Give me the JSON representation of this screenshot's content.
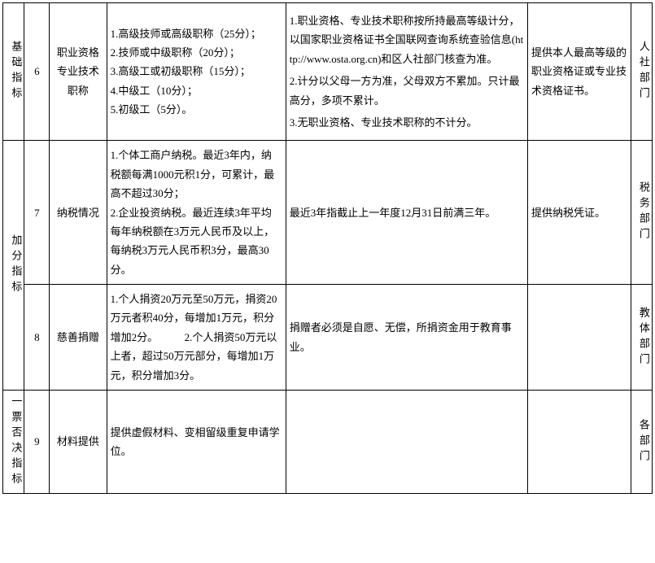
{
  "rows": {
    "r6": {
      "category": "基础指标",
      "num": "6",
      "name": "职业资格专业技术职称",
      "score": "1.高级技师或高级职称（25分）；\n2.技师或中级职称（20分）；\n3.高级工或初级职称（15分）；\n4.中级工（10分）；\n5.初级工（5分）。",
      "note1": "1.职业资格、专业技术职称按所持最高等级计分，以国家职业资格证书全国联网查询系统查验信息(http://www.osta.org.cn)和区人社部门核查为准。",
      "note2": "2.计分以父母一方为准，父母双方不累加。只计最高分，多项不累计。",
      "note3": "3.无职业资格、专业技术职称的不计分。",
      "doc": "提供本人最高等级的职业资格证或专业技术资格证书。",
      "dept": "人社部门"
    },
    "r7": {
      "category": "加分指标",
      "num": "7",
      "name": "纳税情况",
      "score": "1.个体工商户纳税。最近3年内，纳税额每满1000元积1分，可累计，最高不超过30分；\n2.企业投资纳税。最近连续3年平均每年纳税额在3万元人民币及以上，每纳税3万元人民币积3分，最高30分。",
      "note": "最近3年指截止上一年度12月31日前满三年。",
      "doc": "提供纳税凭证。",
      "dept": "税务部门"
    },
    "r8": {
      "num": "8",
      "name": "慈善捐赠",
      "score": "1.个人捐资20万元至50万元，捐资20万元者积40分，每增加1万元，积分增加2分。　　　2.个人捐资50万元以上者，超过50万元部分，每增加1万元，积分增加3分。",
      "note": "捐赠者必须是自愿、无偿，所捐资金用于教育事业。",
      "doc": "",
      "dept": "教体部门"
    },
    "r9": {
      "category": "一票否决指标",
      "num": "9",
      "name": "材料提供",
      "score": "提供虚假材料、变相留级重复申请学位。",
      "note": "",
      "doc": "",
      "dept": "各部门"
    }
  }
}
